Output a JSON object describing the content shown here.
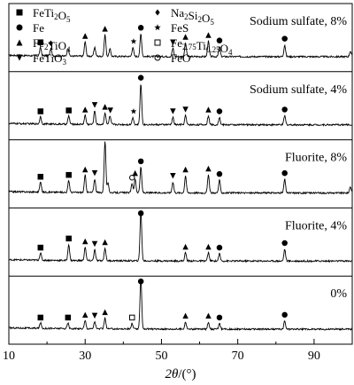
{
  "chart_data": {
    "type": "line",
    "title": "",
    "xlabel": "2θ/(°)",
    "xlabel_parts": {
      "italic": "2θ",
      "rest": "/(°)"
    },
    "ylabel": "",
    "xlim": [
      10,
      100
    ],
    "xticks": [
      10,
      30,
      50,
      70,
      90
    ],
    "xticks_minor": [
      20,
      40,
      60,
      80
    ],
    "legend": [
      {
        "marker": "square-filled",
        "text": "FeTi2O5",
        "parts": [
          [
            "FeTi",
            ""
          ],
          [
            "2",
            "sub"
          ],
          [
            "O",
            ""
          ],
          [
            "5",
            "sub"
          ]
        ]
      },
      {
        "marker": "diamond-filled",
        "text": "Na2Si2O5",
        "parts": [
          [
            "Na",
            ""
          ],
          [
            "2",
            "sub"
          ],
          [
            "Si",
            ""
          ],
          [
            "2",
            "sub"
          ],
          [
            "O",
            ""
          ],
          [
            "5",
            "sub"
          ]
        ]
      },
      {
        "marker": "circle-filled",
        "text": "Fe",
        "parts": [
          [
            "Fe",
            ""
          ]
        ]
      },
      {
        "marker": "star-filled",
        "text": "FeS",
        "parts": [
          [
            "FeS",
            ""
          ]
        ]
      },
      {
        "marker": "triangle-up-filled",
        "text": "Fe2TiO4",
        "parts": [
          [
            "Fe",
            ""
          ],
          [
            "2",
            "sub"
          ],
          [
            "TiO",
            ""
          ],
          [
            "4",
            "sub"
          ]
        ]
      },
      {
        "marker": "square-open",
        "text": "Fe2.75Ti0.25O4",
        "parts": [
          [
            "Fe",
            ""
          ],
          [
            "2.75",
            "sub"
          ],
          [
            "Ti",
            ""
          ],
          [
            "0.25",
            "sub"
          ],
          [
            "O",
            ""
          ],
          [
            "4",
            "sub"
          ]
        ]
      },
      {
        "marker": "triangle-down-filled",
        "text": "FeTiO3",
        "parts": [
          [
            "FeTiO",
            ""
          ],
          [
            "3",
            "sub"
          ]
        ]
      },
      {
        "marker": "circle-open",
        "text": "FeO",
        "parts": [
          [
            "FeO",
            ""
          ]
        ]
      }
    ],
    "series": [
      {
        "name": "Sodium sulfate, 8%",
        "baseline": 4.2,
        "peaks": [
          [
            18.3,
            0.9
          ],
          [
            21.0,
            0.8
          ],
          [
            25.5,
            0.9
          ],
          [
            30.0,
            1.6
          ],
          [
            32.5,
            1.0
          ],
          [
            35.2,
            2.4
          ],
          [
            36.5,
            0.8
          ],
          [
            42.5,
            1.0
          ],
          [
            44.6,
            2.5
          ],
          [
            53.0,
            0.9
          ],
          [
            56.3,
            1.5
          ],
          [
            62.3,
            1.7
          ],
          [
            65.2,
            1.1
          ],
          [
            82.3,
            1.3
          ],
          [
            99.5,
            0.6
          ]
        ],
        "markers": [
          {
            "x": 18.3,
            "marker": "square-filled"
          },
          {
            "x": 21.0,
            "marker": "diamond-filled"
          },
          {
            "x": 30.0,
            "marker": "triangle-up-filled"
          },
          {
            "x": 35.2,
            "marker": "triangle-up-filled"
          },
          {
            "x": 42.7,
            "marker": "star-filled"
          },
          {
            "x": 44.6,
            "marker": "circle-filled"
          },
          {
            "x": 53.0,
            "marker": "triangle-down-filled"
          },
          {
            "x": 56.3,
            "marker": "triangle-up-filled"
          },
          {
            "x": 62.3,
            "marker": "triangle-up-filled"
          },
          {
            "x": 65.2,
            "marker": "circle-filled"
          },
          {
            "x": 82.3,
            "marker": "circle-filled"
          }
        ]
      },
      {
        "name": "Sodium sulfate, 4%",
        "baseline": 3.2,
        "peaks": [
          [
            18.3,
            0.8
          ],
          [
            25.7,
            0.9
          ],
          [
            30.0,
            1.0
          ],
          [
            32.5,
            1.5
          ],
          [
            35.2,
            1.3
          ],
          [
            36.5,
            0.9
          ],
          [
            42.5,
            0.8
          ],
          [
            44.6,
            4.5
          ],
          [
            53.0,
            0.8
          ],
          [
            56.3,
            1.0
          ],
          [
            62.3,
            1.0
          ],
          [
            65.2,
            0.8
          ],
          [
            82.3,
            1.0
          ]
        ],
        "markers": [
          {
            "x": 18.3,
            "marker": "square-filled"
          },
          {
            "x": 25.7,
            "marker": "square-filled"
          },
          {
            "x": 30.0,
            "marker": "triangle-up-filled"
          },
          {
            "x": 32.5,
            "marker": "triangle-down-filled"
          },
          {
            "x": 35.2,
            "marker": "triangle-up-filled"
          },
          {
            "x": 36.6,
            "marker": "triangle-down-filled"
          },
          {
            "x": 42.7,
            "marker": "star-filled"
          },
          {
            "x": 44.6,
            "marker": "circle-filled"
          },
          {
            "x": 53.0,
            "marker": "triangle-down-filled"
          },
          {
            "x": 56.3,
            "marker": "triangle-down-filled"
          },
          {
            "x": 62.3,
            "marker": "triangle-up-filled"
          },
          {
            "x": 65.2,
            "marker": "circle-filled"
          },
          {
            "x": 82.3,
            "marker": "circle-filled"
          }
        ]
      },
      {
        "name": "Fluorite, 8%",
        "baseline": 2.2,
        "peaks": [
          [
            18.3,
            1.1
          ],
          [
            25.7,
            1.3
          ],
          [
            30.0,
            1.9
          ],
          [
            32.5,
            1.5
          ],
          [
            35.2,
            5.8
          ],
          [
            36.0,
            1.0
          ],
          [
            42.3,
            1.0
          ],
          [
            43.1,
            1.5
          ],
          [
            44.6,
            2.8
          ],
          [
            53.0,
            1.2
          ],
          [
            56.3,
            1.9
          ],
          [
            62.3,
            2.0
          ],
          [
            65.2,
            1.4
          ],
          [
            82.3,
            1.5
          ],
          [
            99.5,
            0.7
          ]
        ],
        "markers": [
          {
            "x": 18.3,
            "marker": "square-filled"
          },
          {
            "x": 25.7,
            "marker": "square-filled"
          },
          {
            "x": 30.0,
            "marker": "triangle-up-filled"
          },
          {
            "x": 32.5,
            "marker": "triangle-down-filled"
          },
          {
            "x": 42.3,
            "marker": "circle-open"
          },
          {
            "x": 43.1,
            "marker": "triangle-up-filled"
          },
          {
            "x": 44.6,
            "marker": "circle-filled"
          },
          {
            "x": 53.0,
            "marker": "triangle-down-filled"
          },
          {
            "x": 56.3,
            "marker": "triangle-up-filled"
          },
          {
            "x": 62.3,
            "marker": "triangle-up-filled"
          },
          {
            "x": 65.2,
            "marker": "circle-filled"
          },
          {
            "x": 82.3,
            "marker": "circle-filled"
          }
        ]
      },
      {
        "name": "Fluorite, 4%",
        "baseline": 1.2,
        "peaks": [
          [
            18.3,
            0.8
          ],
          [
            25.7,
            1.8
          ],
          [
            30.0,
            1.5
          ],
          [
            32.5,
            1.2
          ],
          [
            35.2,
            1.4
          ],
          [
            44.6,
            5.5
          ],
          [
            56.3,
            0.9
          ],
          [
            62.3,
            0.9
          ],
          [
            65.2,
            0.8
          ],
          [
            82.3,
            1.3
          ]
        ],
        "markers": [
          {
            "x": 18.3,
            "marker": "square-filled"
          },
          {
            "x": 25.7,
            "marker": "square-filled"
          },
          {
            "x": 30.0,
            "marker": "triangle-up-filled"
          },
          {
            "x": 32.5,
            "marker": "triangle-down-filled"
          },
          {
            "x": 35.2,
            "marker": "triangle-up-filled"
          },
          {
            "x": 44.6,
            "marker": "circle-filled"
          },
          {
            "x": 56.3,
            "marker": "triangle-up-filled"
          },
          {
            "x": 62.3,
            "marker": "triangle-up-filled"
          },
          {
            "x": 65.2,
            "marker": "circle-filled"
          },
          {
            "x": 82.3,
            "marker": "circle-filled"
          }
        ]
      },
      {
        "name": "0%",
        "baseline": 0.2,
        "peaks": [
          [
            18.3,
            0.6
          ],
          [
            25.5,
            0.6
          ],
          [
            30.0,
            0.9
          ],
          [
            32.5,
            0.8
          ],
          [
            35.2,
            1.2
          ],
          [
            42.3,
            0.6
          ],
          [
            44.6,
            5.7
          ],
          [
            56.3,
            0.8
          ],
          [
            62.3,
            0.8
          ],
          [
            65.2,
            0.6
          ],
          [
            82.3,
            0.9
          ]
        ],
        "markers": [
          {
            "x": 18.3,
            "marker": "square-filled"
          },
          {
            "x": 25.5,
            "marker": "square-filled"
          },
          {
            "x": 30.0,
            "marker": "triangle-up-filled"
          },
          {
            "x": 32.5,
            "marker": "triangle-down-filled"
          },
          {
            "x": 35.2,
            "marker": "triangle-up-filled"
          },
          {
            "x": 42.3,
            "marker": "square-open"
          },
          {
            "x": 44.6,
            "marker": "circle-filled"
          },
          {
            "x": 56.3,
            "marker": "triangle-up-filled"
          },
          {
            "x": 62.3,
            "marker": "triangle-up-filled"
          },
          {
            "x": 65.2,
            "marker": "circle-filled"
          },
          {
            "x": 82.3,
            "marker": "circle-filled"
          }
        ]
      }
    ],
    "grid": false,
    "legend_placement": "top-left"
  }
}
